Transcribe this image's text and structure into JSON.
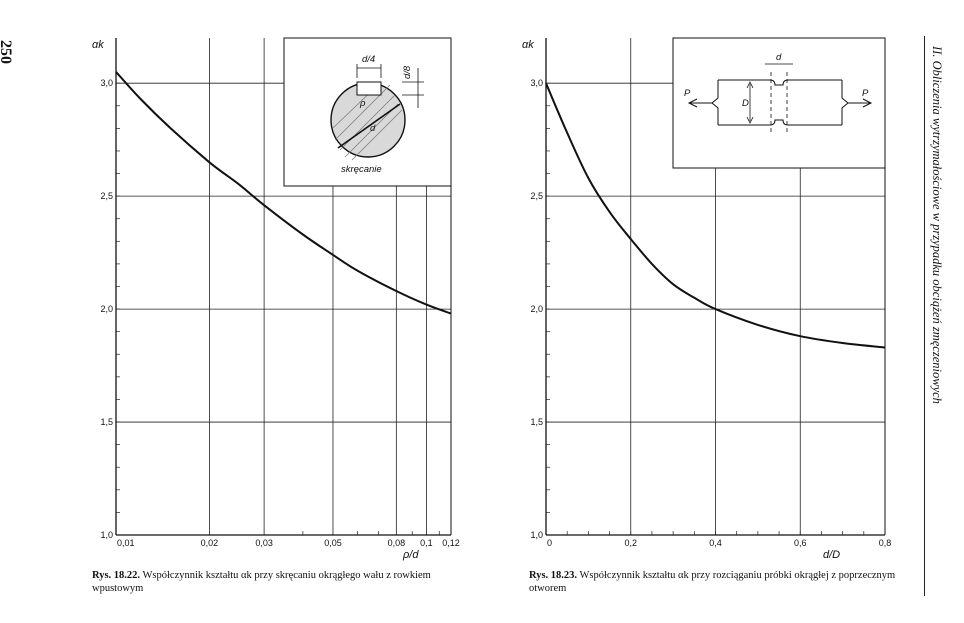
{
  "page": {
    "number": "250",
    "running_head": "II. Obliczenia wytrzymałościowe w przypadku obciążeń zmęczeniowych"
  },
  "figures": [
    {
      "caption_label": "Rys. 18.22.",
      "caption_text": "Współczynnik kształtu αk przy skręcaniu okrągłego wału z rowkiem wpustowym",
      "inset": {
        "d4": "d/4",
        "d8": "d/8",
        "rho": "ρ",
        "d": "d",
        "caption": "skręcanie"
      }
    },
    {
      "caption_label": "Rys. 18.23.",
      "caption_text": "Współczynnik kształtu αk przy rozciąganiu próbki okrągłej z poprzecznym otworem",
      "inset": {
        "d": "d",
        "D": "D",
        "P_left": "P",
        "P_right": "P"
      }
    }
  ],
  "chart_data": [
    {
      "type": "line",
      "x_scale": "log",
      "ylabel": "αk",
      "xlabel": "ρ/d",
      "xlim": [
        0.01,
        0.12
      ],
      "ylim": [
        1.0,
        3.2
      ],
      "x_ticks": [
        {
          "v": 0.01,
          "label": "0,01"
        },
        {
          "v": 0.02,
          "label": "0,02"
        },
        {
          "v": 0.03,
          "label": "0,03"
        },
        {
          "v": 0.05,
          "label": "0,05"
        },
        {
          "v": 0.08,
          "label": "0,08"
        },
        {
          "v": 0.1,
          "label": "0,1"
        },
        {
          "v": 0.12,
          "label": "0,12"
        }
      ],
      "y_ticks": [
        {
          "v": 1.0,
          "label": "1,0"
        },
        {
          "v": 1.5,
          "label": "1,5"
        },
        {
          "v": 2.0,
          "label": "2,0"
        },
        {
          "v": 2.5,
          "label": "2,5"
        },
        {
          "v": 3.0,
          "label": "3,0"
        }
      ],
      "grid": true,
      "series": [
        {
          "x": [
            0.01,
            0.012,
            0.015,
            0.02,
            0.025,
            0.03,
            0.04,
            0.05,
            0.06,
            0.08,
            0.1,
            0.12
          ],
          "y": [
            3.05,
            2.93,
            2.8,
            2.65,
            2.55,
            2.46,
            2.33,
            2.24,
            2.17,
            2.08,
            2.02,
            1.98
          ]
        }
      ]
    },
    {
      "type": "line",
      "ylabel": "αk",
      "xlabel": "d/D",
      "xlim": [
        0,
        0.8
      ],
      "ylim": [
        1.0,
        3.2
      ],
      "x_ticks": [
        {
          "v": 0,
          "label": "0"
        },
        {
          "v": 0.2,
          "label": "0,2"
        },
        {
          "v": 0.4,
          "label": "0,4"
        },
        {
          "v": 0.6,
          "label": "0,6"
        },
        {
          "v": 0.8,
          "label": "0,8"
        }
      ],
      "y_ticks": [
        {
          "v": 1.0,
          "label": "1,0"
        },
        {
          "v": 1.5,
          "label": "1,5"
        },
        {
          "v": 2.0,
          "label": "2,0"
        },
        {
          "v": 2.5,
          "label": "2,5"
        },
        {
          "v": 3.0,
          "label": "3,0"
        }
      ],
      "grid": true,
      "series": [
        {
          "x": [
            0,
            0.05,
            0.1,
            0.15,
            0.2,
            0.25,
            0.3,
            0.35,
            0.4,
            0.5,
            0.6,
            0.7,
            0.8
          ],
          "y": [
            3.0,
            2.78,
            2.58,
            2.43,
            2.31,
            2.2,
            2.11,
            2.05,
            2.0,
            1.93,
            1.88,
            1.85,
            1.83
          ]
        }
      ]
    }
  ]
}
